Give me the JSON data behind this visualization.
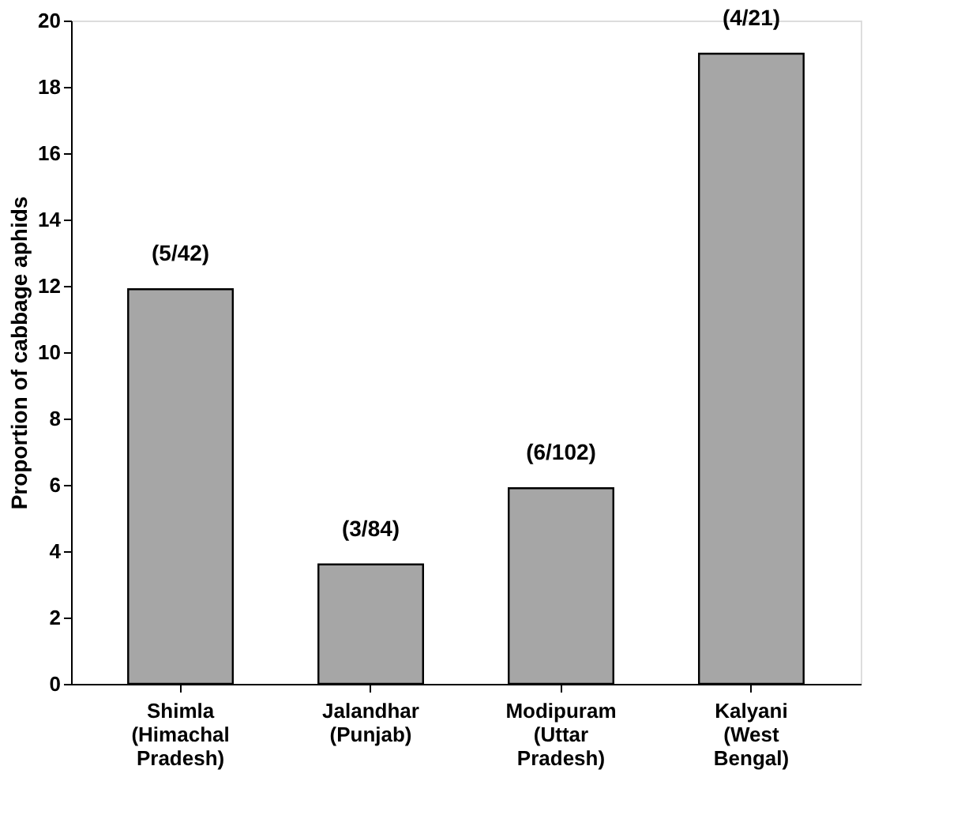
{
  "chart_data": {
    "type": "bar",
    "ylabel": "Proportion of cabbage aphids",
    "categories": [
      "Shimla\n(Himachal\nPradesh)",
      "Jalandhar\n(Punjab)",
      "Modipuram\n(Uttar\nPradesh)",
      "Kalyani\n(West\nBengal)"
    ],
    "values": [
      11.9,
      3.6,
      5.9,
      19.0
    ],
    "value_labels": [
      "(5/42)",
      "(3/84)",
      "(6/102)",
      "(4/21)"
    ],
    "color": "#a6a6a6",
    "ylim": [
      0,
      20
    ],
    "yticks": [
      0,
      2,
      4,
      6,
      8,
      10,
      12,
      14,
      16,
      18,
      20
    ],
    "grid": false
  }
}
